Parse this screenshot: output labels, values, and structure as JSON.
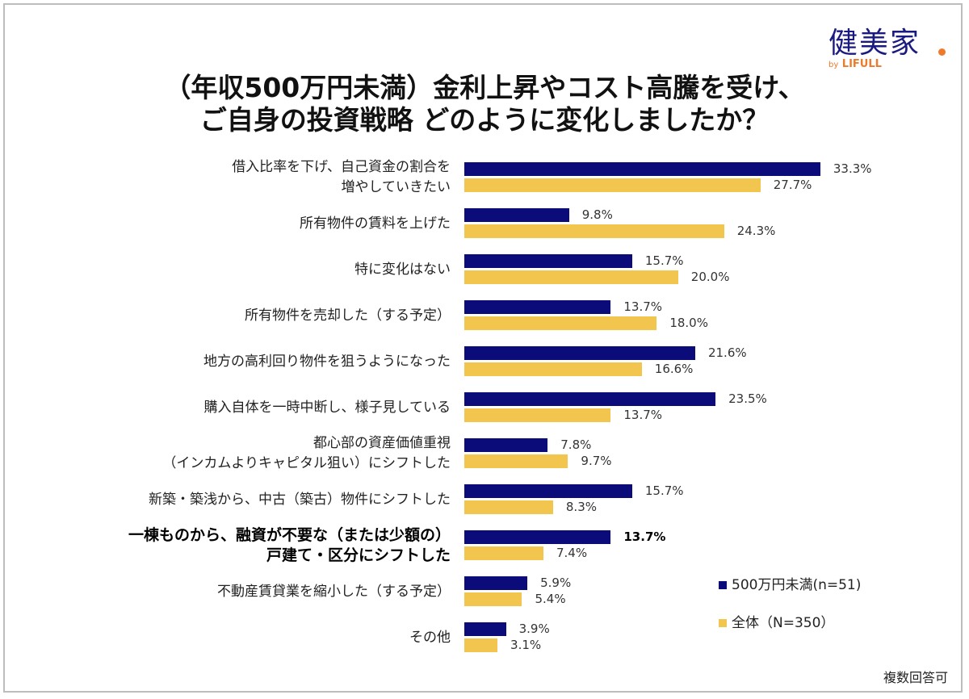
{
  "logo": {
    "main": "健美家",
    "by": "by",
    "brand": "LIFULL"
  },
  "chart_data": {
    "type": "bar",
    "orientation": "horizontal",
    "title": [
      "（年収500万円未満）金利上昇やコスト高騰を受け、",
      "ご自身の投資戦略 どのように変化しましたか？"
    ],
    "categories": [
      [
        "借入比率を下げ、自己資金の割合を",
        "増やしていきたい"
      ],
      [
        "所有物件の賃料を上げた"
      ],
      [
        "特に変化はない"
      ],
      [
        "所有物件を売却した（する予定）"
      ],
      [
        "地方の高利回り物件を狙うようになった"
      ],
      [
        "購入自体を一時中断し、様子見している"
      ],
      [
        "都心部の資産価値重視",
        "（インカムよりキャピタル狙い）にシフトした"
      ],
      [
        "新築・築浅から、中古（築古）物件にシフトした"
      ],
      [
        "一棟ものから、融資が不要な（または少額の）",
        "戸建て・区分にシフトした"
      ],
      [
        "不動産賃貸業を縮小した（する予定）"
      ],
      [
        "その他"
      ]
    ],
    "highlight_index": 8,
    "series": [
      {
        "name": "500万円未満(n=51)",
        "color": "#0b0b7a",
        "values": [
          33.3,
          9.8,
          15.7,
          13.7,
          21.6,
          23.5,
          7.8,
          15.7,
          13.7,
          5.9,
          3.9
        ]
      },
      {
        "name": "全体（N=350）",
        "color": "#f2c54e",
        "values": [
          27.7,
          24.3,
          20.0,
          18.0,
          16.6,
          13.7,
          9.7,
          8.3,
          7.4,
          5.4,
          3.1
        ]
      }
    ],
    "value_suffix": "%",
    "legend_position": "bottom-right",
    "grid": false,
    "note": "複数回答可"
  }
}
